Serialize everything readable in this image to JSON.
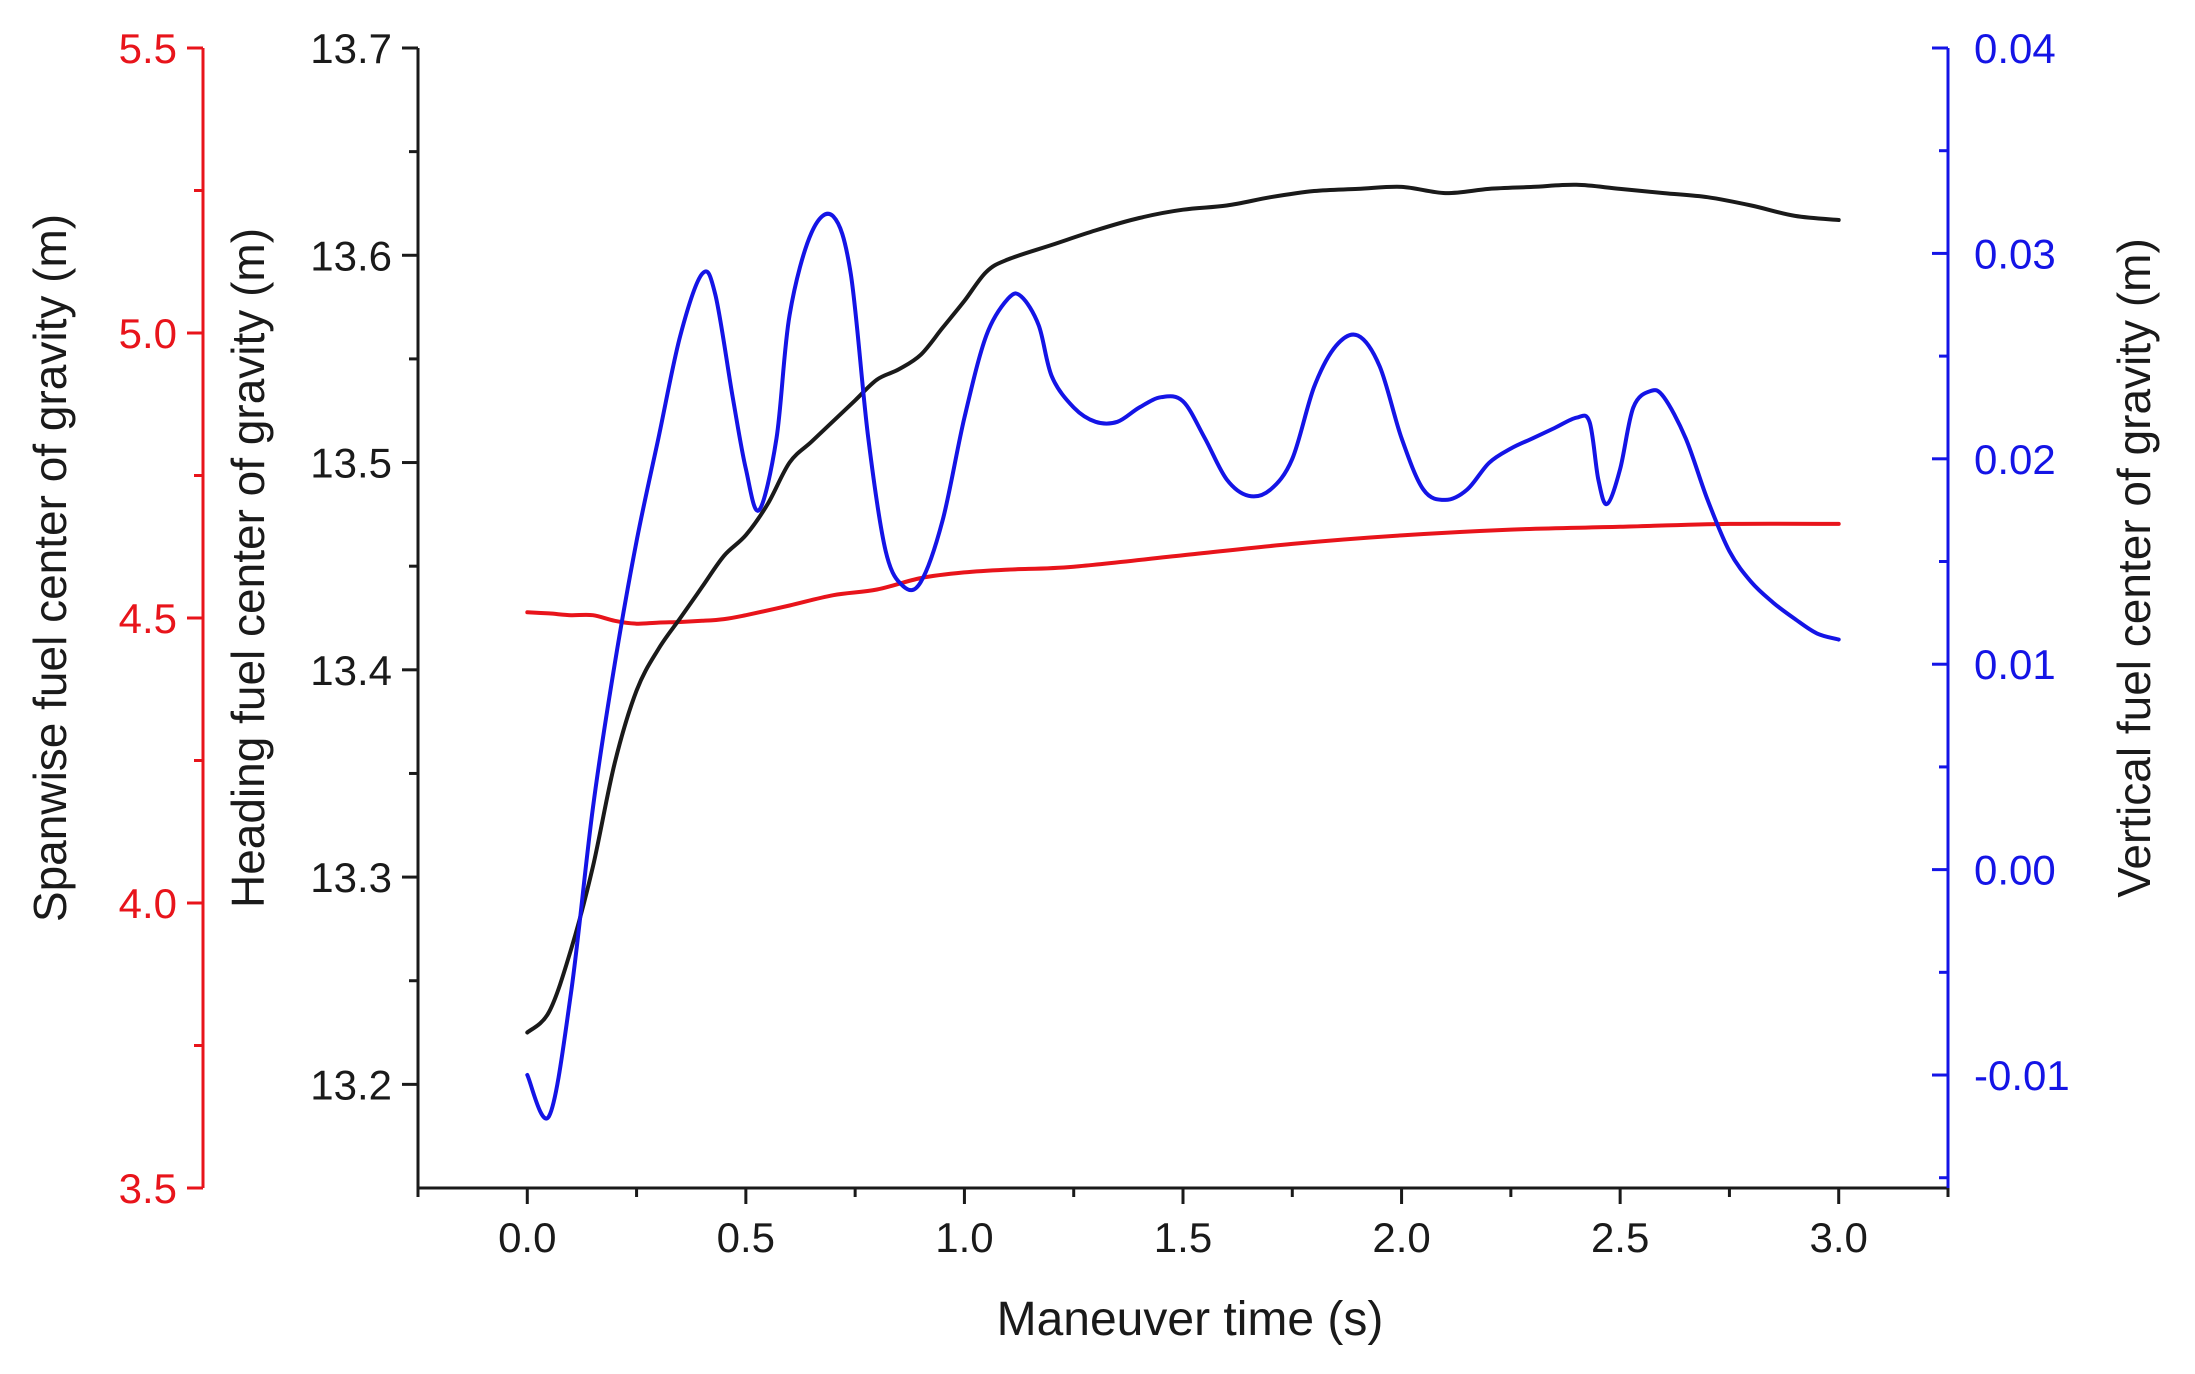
{
  "colors": {
    "spanwise": "#e8141b",
    "heading": "#1a1a1a",
    "vertical": "#1414e6",
    "frame": "#1a1a1a",
    "background": "#ffffff"
  },
  "chart_data": {
    "type": "line",
    "title": "",
    "xlabel": "Maneuver time (s)",
    "xlim": [
      -0.25,
      3.25
    ],
    "xticks": [
      "0.0",
      "0.5",
      "1.0",
      "1.5",
      "2.0",
      "2.5",
      "3.0"
    ],
    "axes": {
      "spanwise": {
        "label": "Spanwise fuel center of gravity (m)",
        "ylim": [
          3.5,
          5.5
        ],
        "ticks": [
          "3.5",
          "4.0",
          "4.5",
          "5.0",
          "5.5"
        ]
      },
      "heading": {
        "label": "Heading fuel center of gravity (m)",
        "ylim": [
          13.15,
          13.7
        ],
        "ticks": [
          "13.2",
          "13.3",
          "13.4",
          "13.5",
          "13.6",
          "13.7"
        ]
      },
      "vertical": {
        "label": "Vertical fuel center of gravity (m)",
        "ylim": [
          -0.0155,
          0.04
        ],
        "ticks": [
          "-0.01",
          "0.00",
          "0.01",
          "0.02",
          "0.03",
          "0.04"
        ]
      }
    },
    "grid": false,
    "legend": "none",
    "series": [
      {
        "axis": "spanwise",
        "x": [
          0.0,
          0.05,
          0.1,
          0.15,
          0.2,
          0.25,
          0.3,
          0.35,
          0.4,
          0.45,
          0.5,
          0.6,
          0.7,
          0.8,
          0.9,
          1.0,
          1.1,
          1.25,
          1.5,
          1.75,
          2.0,
          2.25,
          2.5,
          2.75,
          3.0
        ],
        "y": [
          4.51,
          4.508,
          4.505,
          4.505,
          4.495,
          4.49,
          4.492,
          4.493,
          4.495,
          4.498,
          4.505,
          4.522,
          4.54,
          4.55,
          4.57,
          4.58,
          4.585,
          4.59,
          4.61,
          4.63,
          4.645,
          4.655,
          4.66,
          4.665,
          4.665
        ]
      },
      {
        "axis": "heading",
        "x": [
          0.0,
          0.05,
          0.1,
          0.15,
          0.2,
          0.25,
          0.3,
          0.35,
          0.4,
          0.45,
          0.5,
          0.55,
          0.6,
          0.65,
          0.7,
          0.75,
          0.8,
          0.85,
          0.9,
          0.95,
          1.0,
          1.05,
          1.1,
          1.2,
          1.3,
          1.4,
          1.5,
          1.6,
          1.7,
          1.8,
          1.9,
          2.0,
          2.1,
          2.2,
          2.3,
          2.4,
          2.5,
          2.6,
          2.7,
          2.8,
          2.9,
          3.0
        ],
        "y": [
          13.225,
          13.235,
          13.265,
          13.305,
          13.355,
          13.39,
          13.41,
          13.425,
          13.44,
          13.455,
          13.465,
          13.48,
          13.5,
          13.51,
          13.52,
          13.53,
          13.54,
          13.545,
          13.552,
          13.565,
          13.578,
          13.592,
          13.598,
          13.605,
          13.612,
          13.618,
          13.622,
          13.624,
          13.628,
          13.631,
          13.632,
          13.633,
          13.63,
          13.632,
          13.633,
          13.634,
          13.632,
          13.63,
          13.628,
          13.624,
          13.619,
          13.617
        ]
      },
      {
        "axis": "vertical",
        "x": [
          0.0,
          0.05,
          0.1,
          0.15,
          0.2,
          0.25,
          0.3,
          0.35,
          0.4,
          0.43,
          0.47,
          0.5,
          0.53,
          0.57,
          0.6,
          0.65,
          0.7,
          0.74,
          0.78,
          0.82,
          0.86,
          0.9,
          0.95,
          1.0,
          1.05,
          1.1,
          1.13,
          1.17,
          1.2,
          1.25,
          1.3,
          1.35,
          1.4,
          1.45,
          1.5,
          1.55,
          1.6,
          1.65,
          1.7,
          1.75,
          1.8,
          1.85,
          1.9,
          1.95,
          2.0,
          2.05,
          2.1,
          2.15,
          2.2,
          2.25,
          2.3,
          2.35,
          2.4,
          2.43,
          2.45,
          2.47,
          2.5,
          2.53,
          2.57,
          2.6,
          2.65,
          2.7,
          2.75,
          2.8,
          2.85,
          2.9,
          2.95,
          3.0
        ],
        "y": [
          -0.01,
          -0.012,
          -0.006,
          0.003,
          0.01,
          0.016,
          0.021,
          0.026,
          0.029,
          0.028,
          0.023,
          0.0195,
          0.0175,
          0.021,
          0.027,
          0.031,
          0.0318,
          0.029,
          0.021,
          0.0155,
          0.0138,
          0.014,
          0.017,
          0.022,
          0.026,
          0.0278,
          0.0279,
          0.0265,
          0.024,
          0.0225,
          0.0218,
          0.0218,
          0.0225,
          0.023,
          0.0228,
          0.021,
          0.019,
          0.0182,
          0.0185,
          0.02,
          0.0235,
          0.0255,
          0.026,
          0.0245,
          0.021,
          0.0185,
          0.018,
          0.0185,
          0.0198,
          0.0205,
          0.021,
          0.0215,
          0.022,
          0.0218,
          0.019,
          0.0178,
          0.0195,
          0.0225,
          0.0233,
          0.023,
          0.021,
          0.018,
          0.0155,
          0.014,
          0.013,
          0.0122,
          0.0115,
          0.0112
        ]
      }
    ]
  }
}
